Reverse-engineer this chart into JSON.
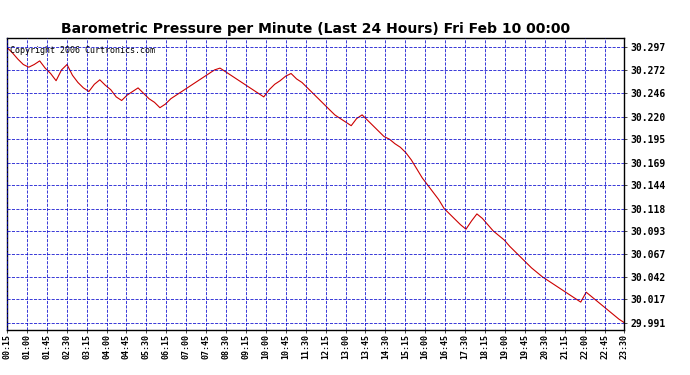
{
  "title": "Barometric Pressure per Minute (Last 24 Hours) Fri Feb 10 00:00",
  "copyright": "Copyright 2006 Curtronics.com",
  "background_color": "#ffffff",
  "plot_bg_color": "#ffffff",
  "line_color": "#cc0000",
  "grid_color": "#0000cc",
  "y_ticks": [
    29.991,
    30.017,
    30.042,
    30.067,
    30.093,
    30.118,
    30.144,
    30.169,
    30.195,
    30.22,
    30.246,
    30.272,
    30.297
  ],
  "y_min": 29.983,
  "y_max": 30.308,
  "x_labels": [
    "00:15",
    "01:00",
    "01:45",
    "02:30",
    "03:15",
    "04:00",
    "04:45",
    "05:30",
    "06:15",
    "07:00",
    "07:45",
    "08:30",
    "09:15",
    "10:00",
    "10:45",
    "11:30",
    "12:15",
    "13:00",
    "13:45",
    "14:30",
    "15:15",
    "16:00",
    "16:45",
    "17:30",
    "18:15",
    "19:00",
    "19:45",
    "20:30",
    "21:15",
    "22:00",
    "22:45",
    "23:30"
  ],
  "pressure_data": [
    30.297,
    30.291,
    30.284,
    30.278,
    30.275,
    30.278,
    30.282,
    30.274,
    30.268,
    30.26,
    30.272,
    30.278,
    30.266,
    30.258,
    30.252,
    30.248,
    30.256,
    30.261,
    30.255,
    30.25,
    30.242,
    30.238,
    30.244,
    30.248,
    30.252,
    30.246,
    30.24,
    30.236,
    30.23,
    30.234,
    30.24,
    30.244,
    30.248,
    30.252,
    30.256,
    30.26,
    30.264,
    30.268,
    30.272,
    30.274,
    30.27,
    30.266,
    30.262,
    30.258,
    30.254,
    30.25,
    30.246,
    30.242,
    30.25,
    30.256,
    30.26,
    30.265,
    30.268,
    30.262,
    30.258,
    30.252,
    30.246,
    30.24,
    30.234,
    30.228,
    30.222,
    30.218,
    30.214,
    30.21,
    30.218,
    30.222,
    30.216,
    30.21,
    30.204,
    30.198,
    30.195,
    30.19,
    30.186,
    30.18,
    30.172,
    30.162,
    30.152,
    30.144,
    30.136,
    30.128,
    30.118,
    30.112,
    30.106,
    30.1,
    30.095,
    30.104,
    30.112,
    30.107,
    30.1,
    30.093,
    30.088,
    30.083,
    30.076,
    30.07,
    30.064,
    30.058,
    30.052,
    30.047,
    30.042,
    30.038,
    30.034,
    30.03,
    30.026,
    30.022,
    30.018,
    30.014,
    30.025,
    30.02,
    30.015,
    30.01,
    30.005,
    30.0,
    29.995,
    29.991
  ]
}
